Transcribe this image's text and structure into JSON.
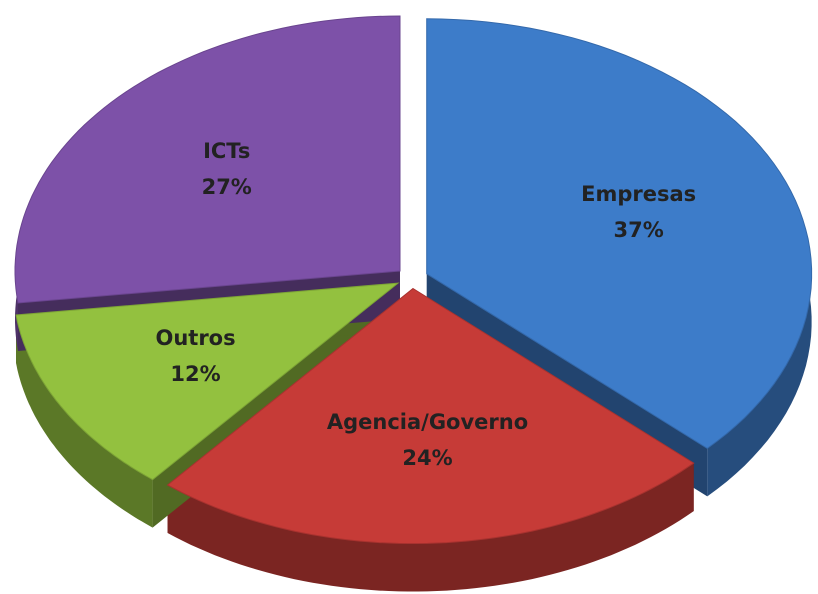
{
  "chart_data": {
    "type": "pie",
    "categories": [
      "Empresas",
      "Agencia/Governo",
      "Outros",
      "ICTs"
    ],
    "values": [
      37,
      24,
      12,
      27
    ],
    "value_labels": [
      "37%",
      "24%",
      "12%",
      "27%"
    ],
    "colors": [
      "#3d7cc9",
      "#c63b37",
      "#93c13f",
      "#7d51a8"
    ]
  }
}
